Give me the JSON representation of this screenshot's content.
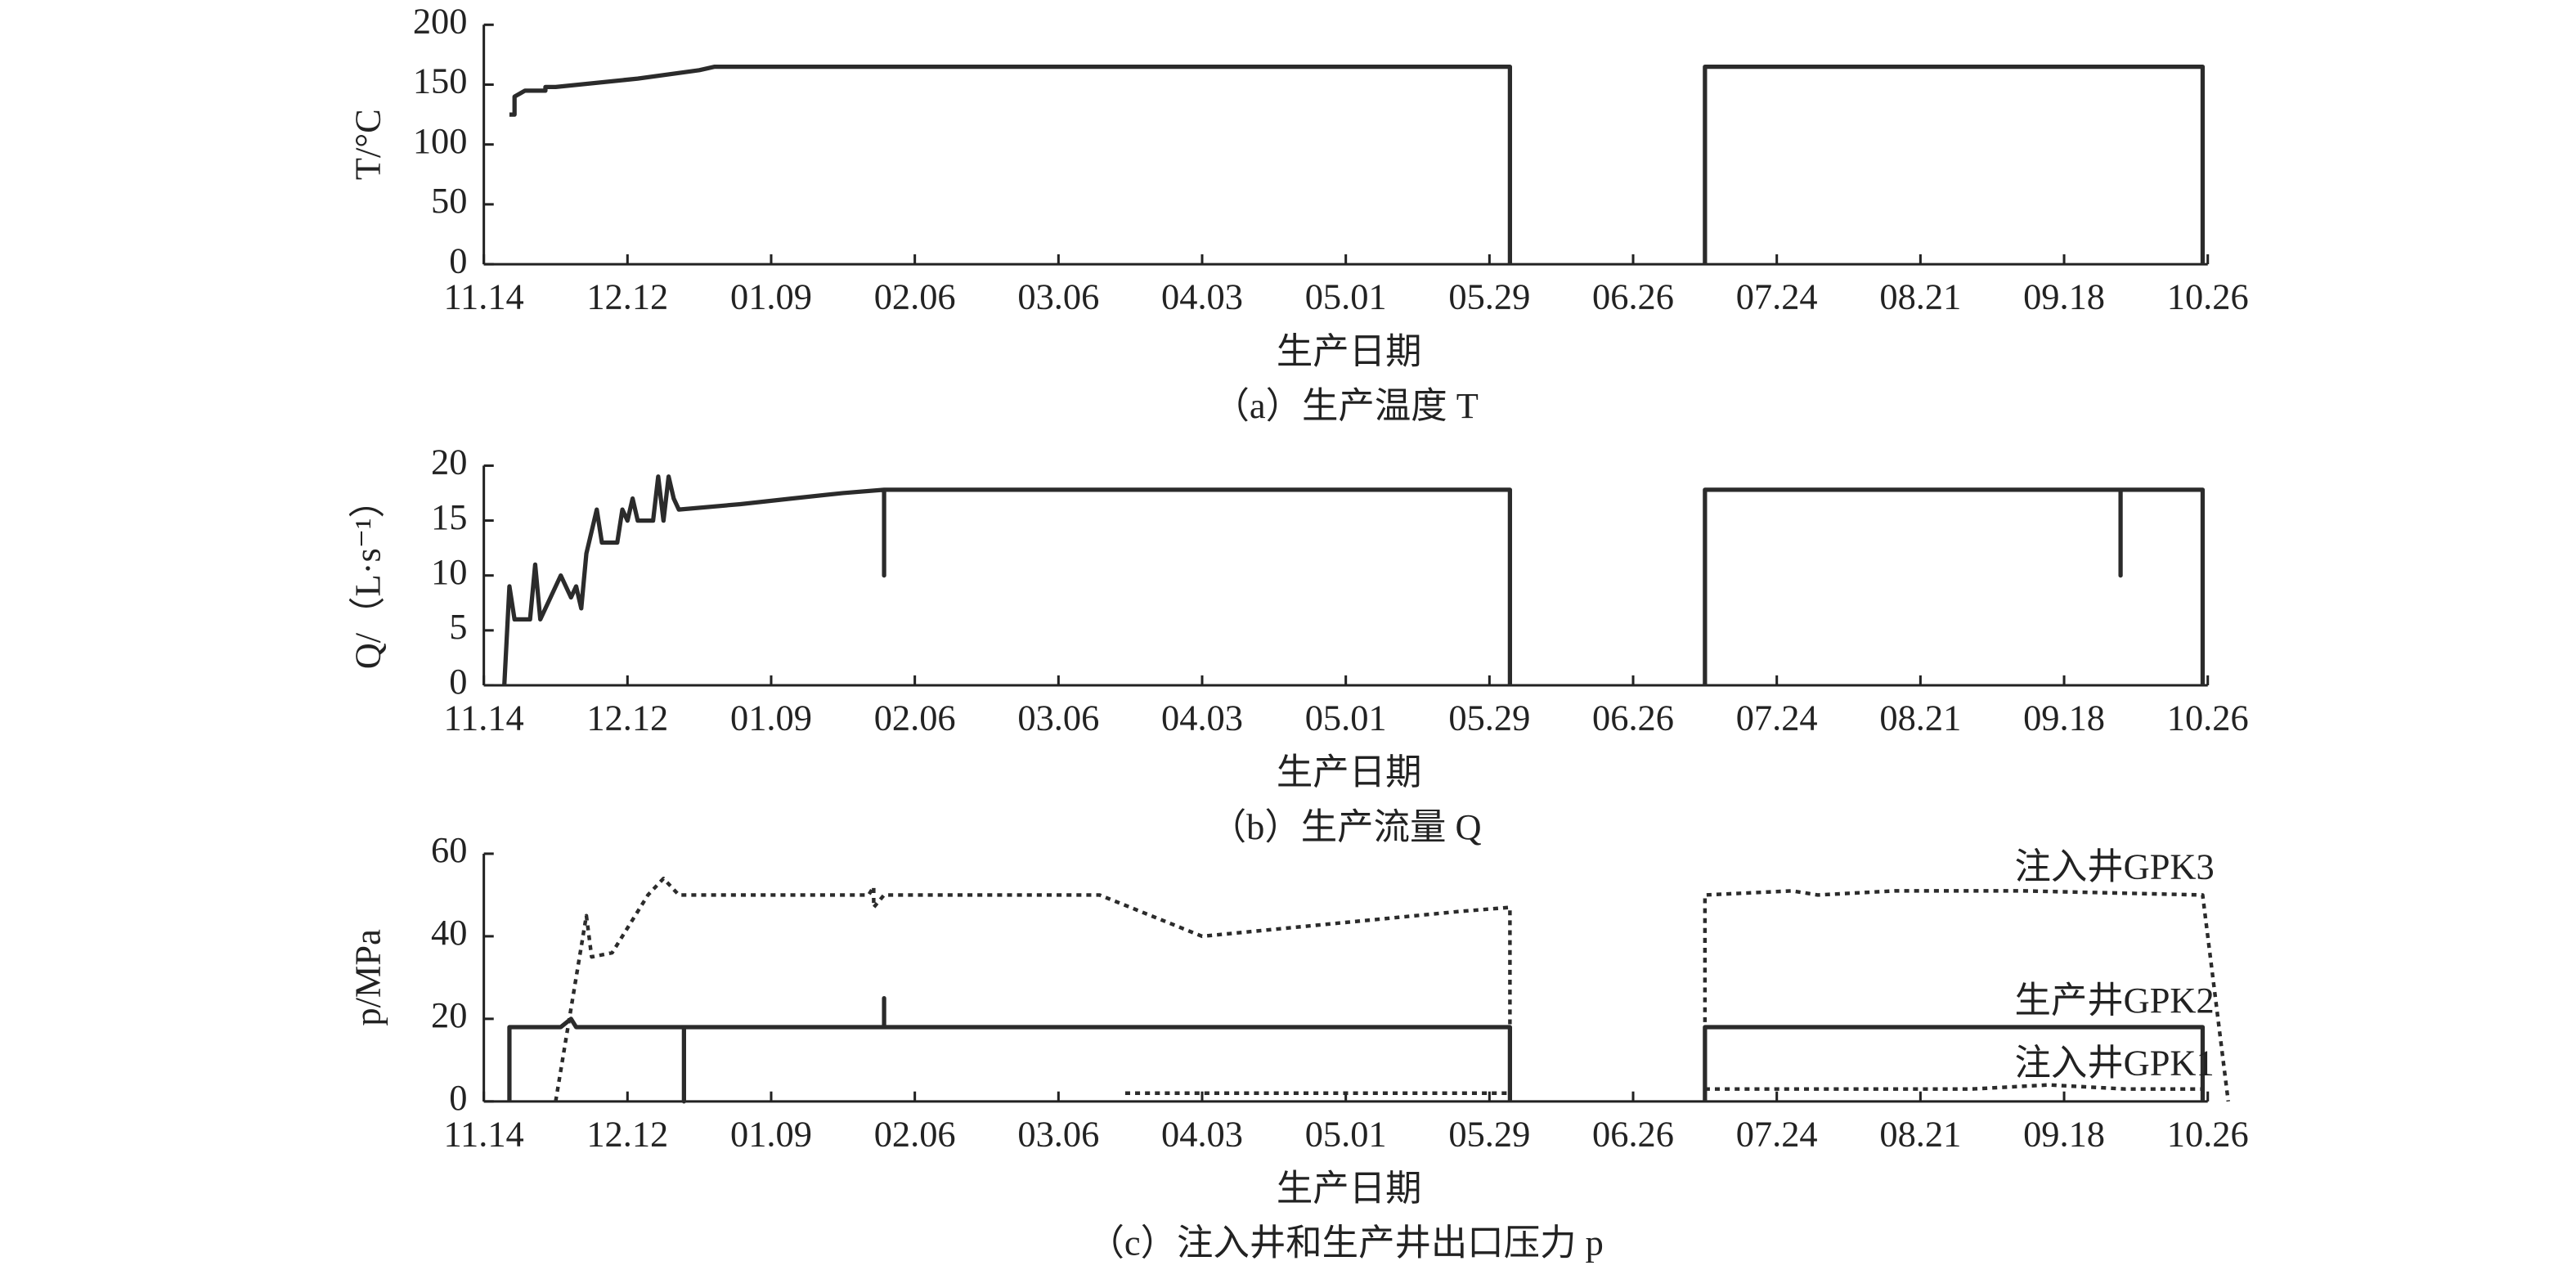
{
  "chart_data": [
    {
      "type": "line",
      "ylabel": "T/°C",
      "xlabel": "生产日期",
      "caption": "（a）生产温度 T",
      "xlim": [
        0,
        336
      ],
      "ylim": [
        0,
        200
      ],
      "yticks": [
        0,
        50,
        100,
        150,
        200
      ],
      "xticks": [
        {
          "value": 0,
          "label": "11.14"
        },
        {
          "value": 28,
          "label": "12.12"
        },
        {
          "value": 56,
          "label": "01.09"
        },
        {
          "value": 84,
          "label": "02.06"
        },
        {
          "value": 112,
          "label": "03.06"
        },
        {
          "value": 140,
          "label": "04.03"
        },
        {
          "value": 168,
          "label": "05.01"
        },
        {
          "value": 196,
          "label": "05.29"
        },
        {
          "value": 224,
          "label": "06.26"
        },
        {
          "value": 252,
          "label": "07.24"
        },
        {
          "value": 280,
          "label": "08.21"
        },
        {
          "value": 308,
          "label": "09.18"
        },
        {
          "value": 336,
          "label": "10.26"
        }
      ],
      "series": [
        {
          "color": "#2b2b2b",
          "style": "solid",
          "x": [
            5,
            6,
            6,
            8,
            12,
            12,
            14,
            30,
            42,
            45,
            200,
            200,
            null,
            238,
            238,
            335,
            335
          ],
          "values": [
            125,
            125,
            140,
            145,
            145,
            148,
            148,
            155,
            162,
            165,
            165,
            0,
            null,
            0,
            165,
            165,
            0
          ]
        }
      ]
    },
    {
      "type": "line",
      "ylabel": "Q/（L·s⁻¹）",
      "xlabel": "生产日期",
      "caption": "（b）生产流量 Q",
      "xlim": [
        0,
        336
      ],
      "ylim": [
        0,
        20
      ],
      "yticks": [
        0,
        5,
        10,
        15,
        20
      ],
      "xticks": [
        {
          "value": 0,
          "label": "11.14"
        },
        {
          "value": 28,
          "label": "12.12"
        },
        {
          "value": 56,
          "label": "01.09"
        },
        {
          "value": 84,
          "label": "02.06"
        },
        {
          "value": 112,
          "label": "03.06"
        },
        {
          "value": 140,
          "label": "04.03"
        },
        {
          "value": 168,
          "label": "05.01"
        },
        {
          "value": 196,
          "label": "05.29"
        },
        {
          "value": 224,
          "label": "06.26"
        },
        {
          "value": 252,
          "label": "07.24"
        },
        {
          "value": 280,
          "label": "08.21"
        },
        {
          "value": 308,
          "label": "09.18"
        },
        {
          "value": 336,
          "label": "10.26"
        }
      ],
      "series": [
        {
          "color": "#2b2b2b",
          "style": "solid",
          "x": [
            4,
            5,
            6,
            9,
            10,
            11,
            13,
            15,
            17,
            18,
            19,
            20,
            22,
            23,
            26,
            27,
            28,
            29,
            30,
            33,
            34,
            35,
            36,
            37,
            38,
            50,
            60,
            70,
            78,
            78,
            78,
            200,
            200,
            null,
            238,
            238,
            319,
            319,
            319,
            335,
            335
          ],
          "values": [
            0,
            9,
            6,
            6,
            11,
            6,
            8,
            10,
            8,
            9,
            7,
            12,
            16,
            13,
            13,
            16,
            15,
            17,
            15,
            15,
            19,
            15,
            19,
            17,
            16,
            16.5,
            17,
            17.5,
            17.8,
            10,
            17.8,
            17.8,
            0,
            null,
            0,
            17.8,
            17.8,
            10,
            17.8,
            17.8,
            0
          ]
        }
      ]
    },
    {
      "type": "line",
      "ylabel": "p/MPa",
      "xlabel": "生产日期",
      "caption": "（c）注入井和生产井出口压力 p",
      "xlim": [
        0,
        336
      ],
      "ylim": [
        0,
        60
      ],
      "yticks": [
        0,
        20,
        40,
        60
      ],
      "xticks": [
        {
          "value": 0,
          "label": "11.14"
        },
        {
          "value": 28,
          "label": "12.12"
        },
        {
          "value": 56,
          "label": "01.09"
        },
        {
          "value": 84,
          "label": "02.06"
        },
        {
          "value": 112,
          "label": "03.06"
        },
        {
          "value": 140,
          "label": "04.03"
        },
        {
          "value": 168,
          "label": "05.01"
        },
        {
          "value": 196,
          "label": "05.29"
        },
        {
          "value": 224,
          "label": "06.26"
        },
        {
          "value": 252,
          "label": "07.24"
        },
        {
          "value": 280,
          "label": "08.21"
        },
        {
          "value": 308,
          "label": "09.18"
        },
        {
          "value": 336,
          "label": "10.26"
        }
      ],
      "series": [
        {
          "name": "注入井GPK3",
          "color": "#2b2b2b",
          "style": "dotted",
          "x": [
            14,
            20,
            21,
            25,
            28,
            32,
            35,
            38,
            75,
            76,
            76,
            78,
            120,
            140,
            190,
            200,
            200,
            null,
            238,
            238,
            255,
            260,
            275,
            300,
            335,
            340
          ],
          "values": [
            0,
            45,
            35,
            36,
            42,
            50,
            54,
            50,
            50,
            52,
            47,
            50,
            50,
            40,
            46,
            47,
            0,
            null,
            0,
            50,
            51,
            50,
            51,
            51,
            50,
            0
          ]
        },
        {
          "name": "生产井GPK2",
          "color": "#2b2b2b",
          "style": "solid",
          "x": [
            5,
            5,
            15,
            17,
            18,
            39,
            39,
            39,
            78,
            78,
            78,
            200,
            200,
            null,
            238,
            238,
            335,
            335
          ],
          "values": [
            0,
            18,
            18,
            20,
            18,
            18,
            0,
            18,
            18,
            25,
            18,
            18,
            0,
            null,
            0,
            18,
            18,
            0
          ]
        },
        {
          "name": "注入井GPK1",
          "color": "#2b2b2b",
          "style": "dotted",
          "x": [
            125,
            200,
            null,
            238,
            290,
            305,
            320,
            335
          ],
          "values": [
            2,
            2,
            null,
            3,
            3,
            4,
            3,
            3
          ]
        }
      ]
    }
  ]
}
